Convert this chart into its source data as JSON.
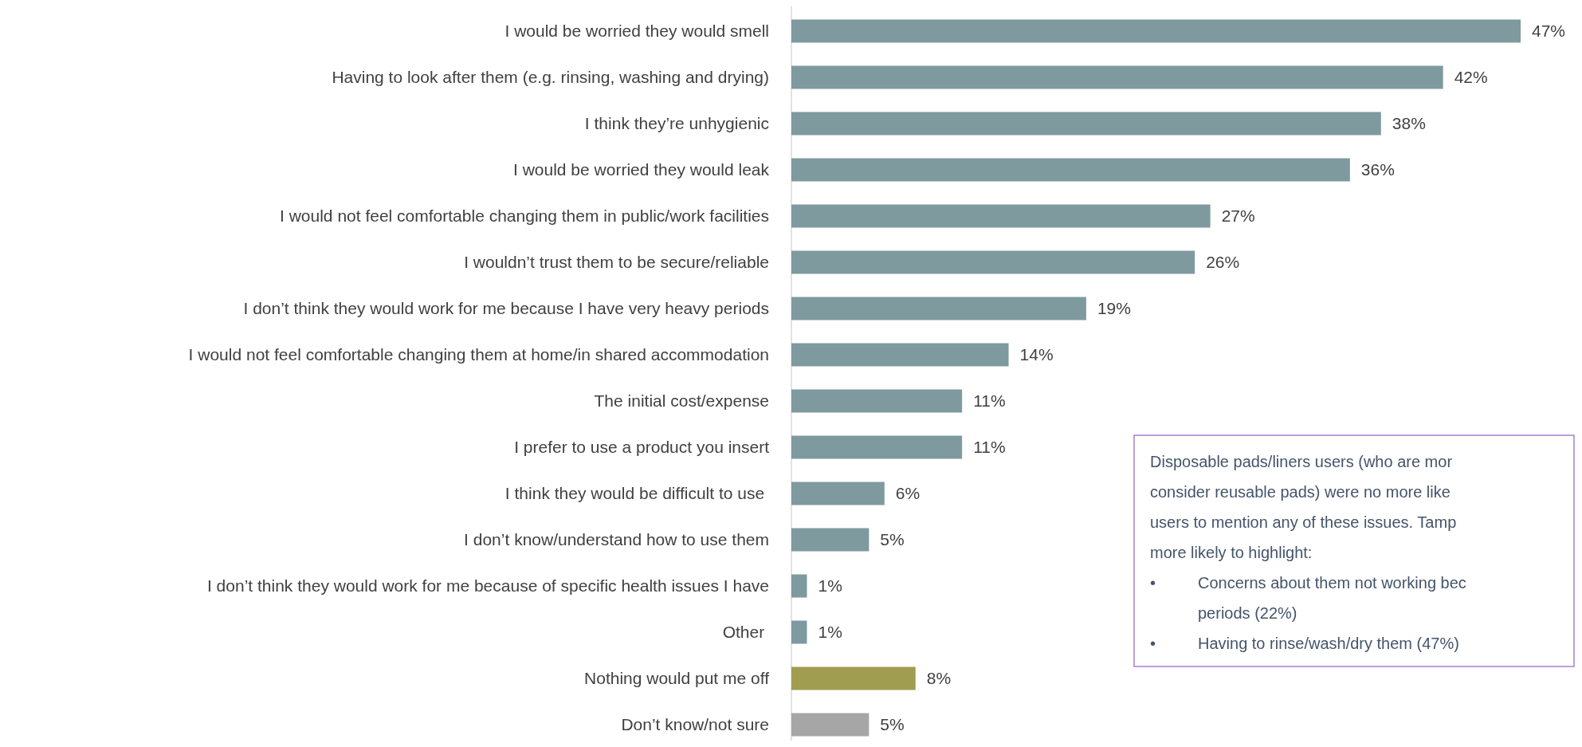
{
  "chart_data": {
    "type": "bar",
    "orientation": "horizontal",
    "categories": [
      "I would be worried they would smell",
      "Having to look after them (e.g. rinsing, washing and drying)",
      "I think they’re unhygienic",
      "I would be worried they would leak",
      "I would not feel comfortable changing them in public/work facilities",
      "I wouldn’t trust them to be secure/reliable",
      "I don’t think they would work for me because I have very heavy periods",
      "I would not feel comfortable changing them at home/in shared accommodation",
      "The initial cost/expense",
      "I prefer to use a product you insert",
      "I think they would be difficult to use ",
      "I don’t know/understand how to use them",
      "I don’t think they would work for me because of specific health issues I have",
      "Other ",
      "Nothing would put me off",
      "Don’t know/not sure"
    ],
    "values": [
      47,
      42,
      38,
      36,
      27,
      26,
      19,
      14,
      11,
      11,
      6,
      5,
      1,
      1,
      8,
      5
    ],
    "value_labels": [
      "47%",
      "42%",
      "38%",
      "36%",
      "27%",
      "26%",
      "19%",
      "14%",
      "11%",
      "11%",
      "6%",
      "5%",
      "1%",
      "1%",
      "8%",
      "5%"
    ],
    "colors": [
      "#7f9a9e",
      "#7f9a9e",
      "#7f9a9e",
      "#7f9a9e",
      "#7f9a9e",
      "#7f9a9e",
      "#7f9a9e",
      "#7f9a9e",
      "#7f9a9e",
      "#7f9a9e",
      "#7f9a9e",
      "#7f9a9e",
      "#7f9a9e",
      "#7f9a9e",
      "#a09d50",
      "#a6a6a6"
    ],
    "annotations": [
      "Disposable pads/liners users (who are mor",
      "consider reusable pads) were no more like",
      "users to mention any of these issues. Tamp",
      "more likely to highlight:",
      "• Concerns about them not working bec",
      "periods (22%)",
      "• Having to rinse/wash/dry them (47%)"
    ]
  }
}
